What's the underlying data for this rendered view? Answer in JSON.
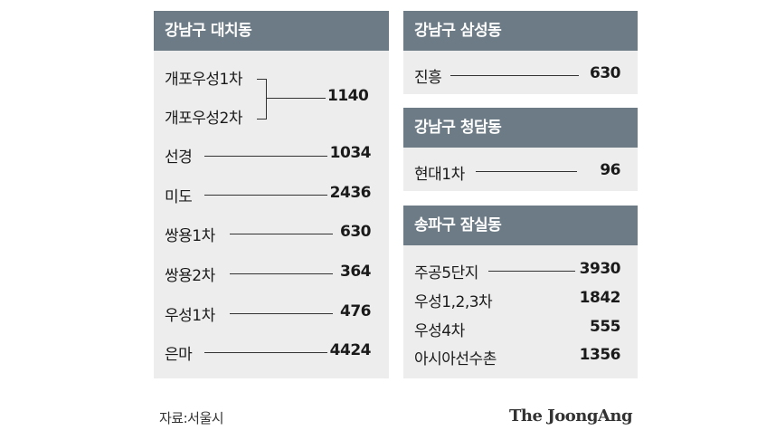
{
  "daechi": {
    "title": "강남구 대치동",
    "bracket_a": "개포우성1차",
    "bracket_b": "개포우성2차",
    "bracket_value": "1140",
    "rows": [
      {
        "label": "선경",
        "value": "1034"
      },
      {
        "label": "미도",
        "value": "2436"
      },
      {
        "label": "쌍용1차",
        "value": "630"
      },
      {
        "label": "쌍용2차",
        "value": "364"
      },
      {
        "label": "우성1차",
        "value": "476"
      },
      {
        "label": "은마",
        "value": "4424"
      }
    ]
  },
  "samsung": {
    "title": "강남구 삼성동",
    "rows": [
      {
        "label": "진흥",
        "value": "630"
      }
    ]
  },
  "cheongdam": {
    "title": "강남구 청담동",
    "rows": [
      {
        "label": "현대1차",
        "value": "96"
      }
    ]
  },
  "jamsil": {
    "title": "송파구 잠실동",
    "rows": [
      {
        "label": "주공5단지",
        "value": "3930"
      },
      {
        "label": "우성1,2,3차",
        "value": "1842"
      },
      {
        "label": "우성4차",
        "value": "555"
      },
      {
        "label": "아시아선수촌",
        "value": "1356"
      }
    ]
  },
  "footer": {
    "source": "자료:서울시",
    "brand": "The JoongAng"
  }
}
